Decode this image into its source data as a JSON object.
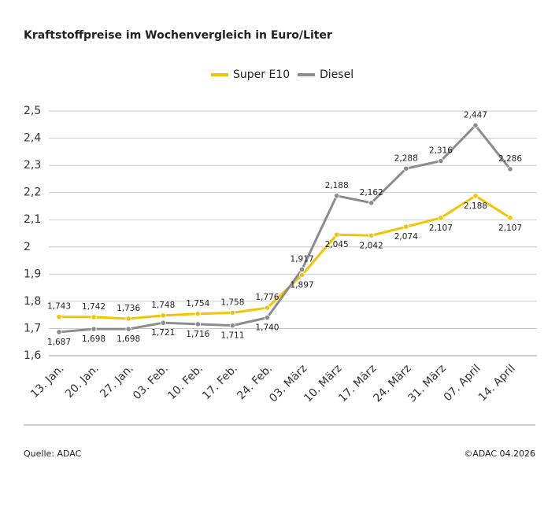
{
  "chart_data": {
    "type": "line",
    "title": "Kraftstoffpreise im Wochenvergleich in Euro/Liter",
    "categories": [
      "13. Jan.",
      "20. Jan.",
      "27. Jan.",
      "03. Feb.",
      "10. Feb.",
      "17. Feb.",
      "24. Feb.",
      "03. März",
      "10. März",
      "17. März",
      "24. März",
      "31. März",
      "07. April",
      "14. April"
    ],
    "series": [
      {
        "name": "Super E10",
        "color": "#f3c400",
        "values": [
          1.743,
          1.742,
          1.736,
          1.748,
          1.754,
          1.758,
          1.776,
          1.897,
          2.045,
          2.042,
          2.074,
          2.107,
          2.188,
          2.107
        ],
        "value_labels": [
          "1,743",
          "1,742",
          "1,736",
          "1,748",
          "1,754",
          "1,758",
          "1,776",
          "1,897",
          "2,045",
          "2,042",
          "2,074",
          "2,107",
          "2,188",
          "2,107"
        ]
      },
      {
        "name": "Diesel",
        "color": "#8c8c8c",
        "values": [
          1.687,
          1.698,
          1.698,
          1.721,
          1.716,
          1.711,
          1.74,
          1.917,
          2.188,
          2.162,
          2.288,
          2.316,
          2.447,
          2.286
        ],
        "value_labels": [
          "1,687",
          "1,698",
          "1,698",
          "1,721",
          "1,716",
          "1,711",
          "1,740",
          "1,917",
          "2,188",
          "2,162",
          "2,288",
          "2,316",
          "2,447",
          "2,286"
        ]
      }
    ],
    "ylim": [
      1.6,
      2.5
    ],
    "yticks": [
      {
        "value": 1.6,
        "label": "1,6"
      },
      {
        "value": 1.7,
        "label": "1,7"
      },
      {
        "value": 1.8,
        "label": "1,8"
      },
      {
        "value": 1.9,
        "label": "1,9"
      },
      2,
      {
        "value": 2.1,
        "label": "2,1"
      },
      {
        "value": 2.2,
        "label": "2,2"
      },
      {
        "value": 2.3,
        "label": "2,3"
      },
      {
        "value": 2.4,
        "label": "2,4"
      },
      {
        "value": 2.5,
        "label": "2,5"
      }
    ],
    "grid": true,
    "source": "Quelle: ADAC",
    "copyright": "©ADAC 04.2026"
  }
}
